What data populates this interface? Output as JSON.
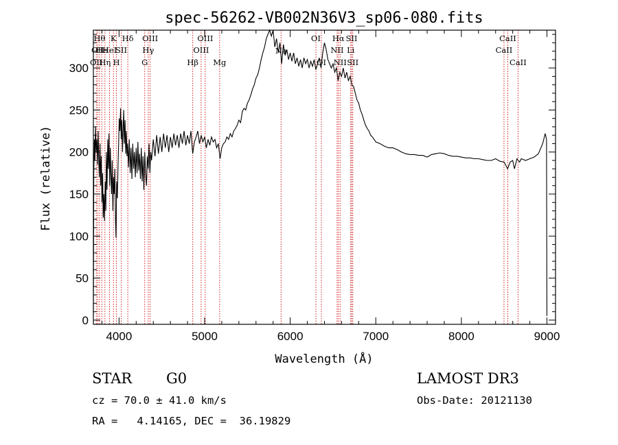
{
  "chart_data": {
    "type": "line",
    "title": "spec-56262-VB002N36V3_sp06-080.fits",
    "xlabel": "Wavelength (Å)",
    "ylabel": "Flux (relative)",
    "xlim": [
      3700,
      9100
    ],
    "ylim": [
      -5,
      345
    ],
    "xticks": [
      4000,
      5000,
      6000,
      7000,
      8000,
      9000
    ],
    "yticks": [
      0,
      50,
      100,
      150,
      200,
      250,
      300
    ],
    "grid": false,
    "spectrum": [
      [
        3700,
        5
      ],
      [
        3705,
        175
      ],
      [
        3712,
        215
      ],
      [
        3718,
        190
      ],
      [
        3725,
        230
      ],
      [
        3732,
        200
      ],
      [
        3740,
        215
      ],
      [
        3748,
        185
      ],
      [
        3755,
        225
      ],
      [
        3762,
        195
      ],
      [
        3770,
        170
      ],
      [
        3778,
        210
      ],
      [
        3785,
        160
      ],
      [
        3792,
        195
      ],
      [
        3800,
        140
      ],
      [
        3808,
        175
      ],
      [
        3815,
        122
      ],
      [
        3822,
        150
      ],
      [
        3830,
        118
      ],
      [
        3838,
        165
      ],
      [
        3845,
        130
      ],
      [
        3852,
        200
      ],
      [
        3860,
        155
      ],
      [
        3868,
        215
      ],
      [
        3875,
        180
      ],
      [
        3882,
        222
      ],
      [
        3890,
        160
      ],
      [
        3898,
        205
      ],
      [
        3905,
        175
      ],
      [
        3912,
        150
      ],
      [
        3920,
        190
      ],
      [
        3928,
        130
      ],
      [
        3935,
        170
      ],
      [
        3942,
        150
      ],
      [
        3950,
        180
      ],
      [
        3958,
        120
      ],
      [
        3965,
        98
      ],
      [
        3972,
        165
      ],
      [
        3980,
        145
      ],
      [
        3988,
        185
      ],
      [
        3995,
        210
      ],
      [
        4002,
        240
      ],
      [
        4010,
        225
      ],
      [
        4018,
        252
      ],
      [
        4025,
        215
      ],
      [
        4032,
        238
      ],
      [
        4040,
        200
      ],
      [
        4048,
        230
      ],
      [
        4055,
        250
      ],
      [
        4062,
        210
      ],
      [
        4070,
        238
      ],
      [
        4078,
        198
      ],
      [
        4085,
        225
      ],
      [
        4092,
        195
      ],
      [
        4100,
        210
      ],
      [
        4110,
        182
      ],
      [
        4120,
        215
      ],
      [
        4130,
        175
      ],
      [
        4140,
        205
      ],
      [
        4150,
        168
      ],
      [
        4160,
        210
      ],
      [
        4170,
        180
      ],
      [
        4180,
        200
      ],
      [
        4190,
        170
      ],
      [
        4200,
        205
      ],
      [
        4210,
        175
      ],
      [
        4220,
        212
      ],
      [
        4230,
        178
      ],
      [
        4240,
        198
      ],
      [
        4250,
        168
      ],
      [
        4260,
        205
      ],
      [
        4270,
        165
      ],
      [
        4280,
        195
      ],
      [
        4290,
        155
      ],
      [
        4300,
        200
      ],
      [
        4310,
        175
      ],
      [
        4320,
        160
      ],
      [
        4330,
        195
      ],
      [
        4340,
        180
      ],
      [
        4350,
        210
      ],
      [
        4360,
        175
      ],
      [
        4370,
        200
      ],
      [
        4380,
        190
      ],
      [
        4400,
        215
      ],
      [
        4420,
        195
      ],
      [
        4440,
        220
      ],
      [
        4460,
        198
      ],
      [
        4480,
        218
      ],
      [
        4500,
        200
      ],
      [
        4520,
        222
      ],
      [
        4540,
        205
      ],
      [
        4560,
        220
      ],
      [
        4580,
        200
      ],
      [
        4600,
        218
      ],
      [
        4620,
        205
      ],
      [
        4640,
        222
      ],
      [
        4660,
        208
      ],
      [
        4680,
        220
      ],
      [
        4700,
        205
      ],
      [
        4720,
        222
      ],
      [
        4740,
        210
      ],
      [
        4760,
        225
      ],
      [
        4780,
        208
      ],
      [
        4800,
        220
      ],
      [
        4820,
        210
      ],
      [
        4840,
        225
      ],
      [
        4860,
        198
      ],
      [
        4880,
        212
      ],
      [
        4900,
        218
      ],
      [
        4920,
        225
      ],
      [
        4940,
        210
      ],
      [
        4960,
        220
      ],
      [
        4980,
        212
      ],
      [
        5000,
        218
      ],
      [
        5020,
        205
      ],
      [
        5040,
        215
      ],
      [
        5060,
        208
      ],
      [
        5080,
        218
      ],
      [
        5100,
        212
      ],
      [
        5120,
        215
      ],
      [
        5140,
        205
      ],
      [
        5160,
        210
      ],
      [
        5180,
        192
      ],
      [
        5200,
        205
      ],
      [
        5220,
        210
      ],
      [
        5240,
        212
      ],
      [
        5260,
        218
      ],
      [
        5280,
        215
      ],
      [
        5300,
        222
      ],
      [
        5320,
        218
      ],
      [
        5340,
        225
      ],
      [
        5360,
        228
      ],
      [
        5380,
        232
      ],
      [
        5400,
        238
      ],
      [
        5420,
        235
      ],
      [
        5440,
        248
      ],
      [
        5460,
        252
      ],
      [
        5480,
        250
      ],
      [
        5500,
        258
      ],
      [
        5520,
        262
      ],
      [
        5540,
        268
      ],
      [
        5560,
        275
      ],
      [
        5580,
        280
      ],
      [
        5600,
        288
      ],
      [
        5620,
        292
      ],
      [
        5640,
        300
      ],
      [
        5660,
        310
      ],
      [
        5680,
        318
      ],
      [
        5700,
        325
      ],
      [
        5720,
        335
      ],
      [
        5740,
        340
      ],
      [
        5760,
        345
      ],
      [
        5780,
        338
      ],
      [
        5800,
        345
      ],
      [
        5820,
        325
      ],
      [
        5840,
        335
      ],
      [
        5860,
        318
      ],
      [
        5880,
        330
      ],
      [
        5900,
        305
      ],
      [
        5920,
        328
      ],
      [
        5940,
        315
      ],
      [
        5960,
        322
      ],
      [
        5980,
        310
      ],
      [
        6000,
        318
      ],
      [
        6020,
        308
      ],
      [
        6040,
        318
      ],
      [
        6060,
        305
      ],
      [
        6080,
        312
      ],
      [
        6100,
        302
      ],
      [
        6120,
        310
      ],
      [
        6140,
        300
      ],
      [
        6160,
        312
      ],
      [
        6180,
        305
      ],
      [
        6200,
        310
      ],
      [
        6220,
        300
      ],
      [
        6240,
        308
      ],
      [
        6260,
        302
      ],
      [
        6280,
        310
      ],
      [
        6300,
        298
      ],
      [
        6320,
        305
      ],
      [
        6340,
        312
      ],
      [
        6360,
        300
      ],
      [
        6380,
        318
      ],
      [
        6400,
        330
      ],
      [
        6420,
        322
      ],
      [
        6440,
        310
      ],
      [
        6460,
        305
      ],
      [
        6480,
        300
      ],
      [
        6500,
        305
      ],
      [
        6520,
        295
      ],
      [
        6540,
        300
      ],
      [
        6560,
        285
      ],
      [
        6580,
        295
      ],
      [
        6600,
        290
      ],
      [
        6620,
        300
      ],
      [
        6640,
        288
      ],
      [
        6660,
        295
      ],
      [
        6680,
        285
      ],
      [
        6700,
        290
      ],
      [
        6720,
        280
      ],
      [
        6740,
        278
      ],
      [
        6760,
        270
      ],
      [
        6780,
        262
      ],
      [
        6800,
        258
      ],
      [
        6820,
        250
      ],
      [
        6840,
        245
      ],
      [
        6860,
        238
      ],
      [
        6880,
        232
      ],
      [
        6900,
        228
      ],
      [
        6920,
        225
      ],
      [
        6940,
        220
      ],
      [
        6960,
        218
      ],
      [
        6980,
        215
      ],
      [
        7000,
        212
      ],
      [
        7050,
        210
      ],
      [
        7100,
        207
      ],
      [
        7150,
        205
      ],
      [
        7200,
        205
      ],
      [
        7250,
        203
      ],
      [
        7300,
        200
      ],
      [
        7350,
        198
      ],
      [
        7400,
        197
      ],
      [
        7450,
        197
      ],
      [
        7500,
        196
      ],
      [
        7550,
        196
      ],
      [
        7600,
        194
      ],
      [
        7650,
        197
      ],
      [
        7700,
        198
      ],
      [
        7750,
        199
      ],
      [
        7800,
        198
      ],
      [
        7850,
        196
      ],
      [
        7900,
        195
      ],
      [
        7950,
        195
      ],
      [
        8000,
        194
      ],
      [
        8050,
        193
      ],
      [
        8100,
        193
      ],
      [
        8150,
        192
      ],
      [
        8200,
        192
      ],
      [
        8250,
        191
      ],
      [
        8300,
        190
      ],
      [
        8350,
        190
      ],
      [
        8400,
        192
      ],
      [
        8450,
        189
      ],
      [
        8500,
        188
      ],
      [
        8540,
        180
      ],
      [
        8570,
        188
      ],
      [
        8600,
        190
      ],
      [
        8620,
        180
      ],
      [
        8650,
        192
      ],
      [
        8680,
        188
      ],
      [
        8700,
        192
      ],
      [
        8750,
        190
      ],
      [
        8800,
        192
      ],
      [
        8850,
        194
      ],
      [
        8900,
        198
      ],
      [
        8950,
        210
      ],
      [
        8980,
        222
      ],
      [
        8995,
        215
      ],
      [
        9000,
        5
      ]
    ],
    "line_markers": [
      {
        "wl": 3734,
        "row": 2,
        "label": "OII"
      },
      {
        "wl": 3750,
        "row": 1,
        "label": "OII"
      },
      {
        "wl": 3771,
        "row": 0,
        "label": "Hθ"
      },
      {
        "wl": 3798,
        "row": 1,
        "label": "He"
      },
      {
        "wl": 3835,
        "row": 2,
        "label": "Hη"
      },
      {
        "wl": 3889,
        "row": 1,
        "label": "HeI"
      },
      {
        "wl": 3934,
        "row": 0,
        "label": "K"
      },
      {
        "wl": 3969,
        "row": 2,
        "label": "H"
      },
      {
        "wl": 4026,
        "row": 1,
        "label": "SII"
      },
      {
        "wl": 4102,
        "row": 0,
        "label": "Hδ"
      },
      {
        "wl": 4300,
        "row": 2,
        "label": "G"
      },
      {
        "wl": 4341,
        "row": 1,
        "label": "Hγ"
      },
      {
        "wl": 4363,
        "row": 0,
        "label": "OIII"
      },
      {
        "wl": 4861,
        "row": 2,
        "label": "Hβ"
      },
      {
        "wl": 4959,
        "row": 1,
        "label": "OIII"
      },
      {
        "wl": 5007,
        "row": 0,
        "label": "OIII"
      },
      {
        "wl": 5175,
        "row": 2,
        "label": "Mg"
      },
      {
        "wl": 5893,
        "row": 3,
        "label": "Na"
      },
      {
        "wl": 6300,
        "row": 0,
        "label": "OI"
      },
      {
        "wl": 6364,
        "row": 2,
        "label": "OI"
      },
      {
        "wl": 6548,
        "row": 1,
        "label": "NII"
      },
      {
        "wl": 6563,
        "row": 0,
        "label": "Hα"
      },
      {
        "wl": 6583,
        "row": 2,
        "label": "NII"
      },
      {
        "wl": 6707,
        "row": 1,
        "label": "Li"
      },
      {
        "wl": 6717,
        "row": 0,
        "label": "SII"
      },
      {
        "wl": 6731,
        "row": 2,
        "label": "SII"
      },
      {
        "wl": 8498,
        "row": 1,
        "label": "CaII"
      },
      {
        "wl": 8542,
        "row": 0,
        "label": "CaII"
      },
      {
        "wl": 8662,
        "row": 2,
        "label": "CaII"
      }
    ]
  },
  "info": {
    "class": "STAR",
    "subclass": "G0",
    "survey": "LAMOST DR3",
    "cz": "cz = 70.0 ± 41.0 km/s",
    "obsdate": "Obs-Date: 20121130",
    "radec": "RA =   4.14165, DEC =  36.19829"
  },
  "colors": {
    "spectrum": "#000000",
    "markers": "#cc0000",
    "axes": "#000000"
  }
}
